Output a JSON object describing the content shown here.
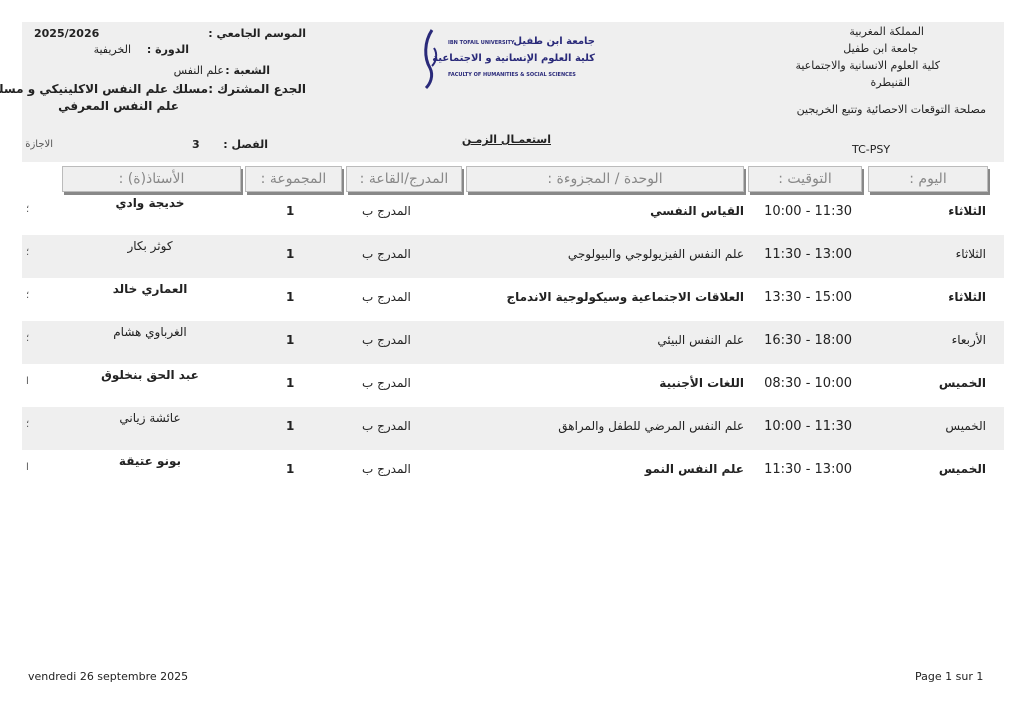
{
  "header_left": {
    "season_label": "الموسم الجامعي :",
    "season": "2025/2026",
    "session_label": "الدورة :",
    "session": "الخريفية",
    "branch_label": "الشعبة :",
    "branch": "علم النفس",
    "core_label": "الجدع المشترك :",
    "core_line1": "مسلك علم النفس الاكلينيكي و مسلك",
    "core_line2": "علم النفس المعرفي",
    "semester_label": "الفصل :",
    "semester": "3",
    "degree": "الاجازة"
  },
  "logo": {
    "line_en": "IBN TOFAIL UNIVERSITY",
    "line_ar1": "جامعة ابن طفيل",
    "line_ar2": "كلية العلوم الإنسانية و الاجتماعية",
    "line_en2": "FACULTY OF HUMANITIES & SOCIAL SCIENCES"
  },
  "header_right": {
    "l1": "المملكة المغربية",
    "l2": "جامعة ابن طفيل",
    "l3": "كلية العلوم الانسانية والاجتماعية",
    "l4": "القنيطرة",
    "l5": "مصلحة التوقعات الاحصائية وتتبع الخريجين",
    "code": "TC-PSY"
  },
  "title": "استعمـال الزمـن",
  "columns": {
    "day": "اليوم :",
    "time": "التوقيت :",
    "module": "الوحدة / المجزوءة :",
    "room": "المدرج/القاعة :",
    "group": "المجموعة :",
    "teacher": "الأستاذ(ة) :"
  },
  "rows": [
    {
      "day": "الثلاثاء",
      "time": "10:00 - 11:30",
      "module": "القياس النفسي",
      "room": "المدرج ب",
      "group": "1",
      "teacher": "خديجة وادي",
      "edge": "؛",
      "bold": true
    },
    {
      "day": "الثلاثاء",
      "time": "11:30 - 13:00",
      "module": "علم النفس الفيزيولوجي والبيولوجي",
      "room": "المدرج ب",
      "group": "1",
      "teacher": "كوثر بكار",
      "edge": "؛",
      "bold": false
    },
    {
      "day": "الثلاثاء",
      "time": "13:30 - 15:00",
      "module": "العلاقات الاجتماعية وسيكولوجية الاندماج",
      "room": "المدرج ب",
      "group": "1",
      "teacher": "العماري خالد",
      "edge": "؛",
      "bold": true
    },
    {
      "day": "الأربعاء",
      "time": "16:30 - 18:00",
      "module": "علم النفس البيئي",
      "room": "المدرج ب",
      "group": "1",
      "teacher": "الغرباوي هشام",
      "edge": "؛",
      "bold": false
    },
    {
      "day": "الخميس",
      "time": "08:30 - 10:00",
      "module": "اللغات الأجنبية",
      "room": "المدرج ب",
      "group": "1",
      "teacher": "عبد الحق بنخلوق",
      "edge": "ا",
      "bold": true
    },
    {
      "day": "الخميس",
      "time": "10:00 - 11:30",
      "module": "علم النفس المرضي للطفل والمراهق",
      "room": "المدرج ب",
      "group": "1",
      "teacher": "عائشة زياني",
      "edge": "؛",
      "bold": false
    },
    {
      "day": "الخميس",
      "time": "11:30 - 13:00",
      "module": "علم النفس النمو",
      "room": "المدرج ب",
      "group": "1",
      "teacher": "بونو عتيقة",
      "edge": "ا",
      "bold": true
    }
  ],
  "footer": {
    "date": "vendredi 26 septembre 2025",
    "page": "Page 1 sur 1"
  }
}
